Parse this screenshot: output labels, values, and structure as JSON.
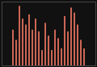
{
  "chart_data": {
    "type": "bar",
    "values": [
      42,
      30,
      70,
      55,
      48,
      60,
      42,
      55,
      40,
      18,
      50,
      35,
      18,
      42,
      32,
      20,
      58,
      40,
      68,
      62,
      48,
      30,
      20
    ],
    "color": "#cc6655",
    "ylim": [
      0,
      75
    ],
    "tick_labels": false,
    "grid": false
  }
}
